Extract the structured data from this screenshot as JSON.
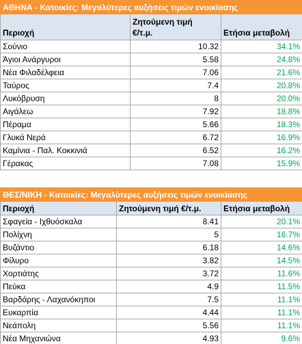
{
  "athens": {
    "title": "ΑΘΗΝΑ - Κατοικίες: Μεγαλύτερες αυξήσεις τιμών ενοικίασης",
    "col_area": "Περιοχή",
    "col_price_line1": "Ζητούμενη τιμή",
    "col_price_line2": "€/τ.μ.",
    "col_change": "Ετήσια μεταβολή",
    "rows": [
      {
        "area": "Σούνιο",
        "price": "10.32",
        "change": "34.1%"
      },
      {
        "area": "Άγιοι Ανάργυροι",
        "price": "5.58",
        "change": "24.8%"
      },
      {
        "area": "Νέα Φιλαδέλφεια",
        "price": "7.06",
        "change": "21.6%"
      },
      {
        "area": "Ταύρος",
        "price": "7.4",
        "change": "20.8%"
      },
      {
        "area": "Λυκόβρυση",
        "price": "8",
        "change": "20.0%"
      },
      {
        "area": "Αιγάλεω",
        "price": "7.92",
        "change": "18.8%"
      },
      {
        "area": "Πέραμα",
        "price": "5.66",
        "change": "18.3%"
      },
      {
        "area": "Γλυκά Νερά",
        "price": "6.72",
        "change": "16.9%"
      },
      {
        "area": "Καμίνια - Παλ. Κοκκινιά",
        "price": "6.52",
        "change": "16.2%"
      },
      {
        "area": "Γέρακας",
        "price": "7.08",
        "change": "15.9%"
      }
    ]
  },
  "thessaloniki": {
    "title": "ΘΕΣ/ΝΙΚΗ - Κατοικίες: Μεγαλύτερες αυξήσεις τιμών ενοικίασης",
    "col_area": "Περιοχή",
    "col_price": "Ζητούμενη τιμή €/τ.μ.",
    "col_change": "Ετήσια μεταβολή",
    "rows": [
      {
        "area": "Σφαγεία - Ιχθυόσκαλα",
        "price": "8.41",
        "change": "20.1%"
      },
      {
        "area": "Πολίχνη",
        "price": "5",
        "change": "16.7%"
      },
      {
        "area": "Βυζάντιο",
        "price": "6.18",
        "change": "14.6%"
      },
      {
        "area": "Φίλυρο",
        "price": "3.82",
        "change": "14.5%"
      },
      {
        "area": "Χορτιάτης",
        "price": "3.72",
        "change": "11.6%"
      },
      {
        "area": "Πεύκα",
        "price": "4.9",
        "change": "11.5%"
      },
      {
        "area": "Βαρδάρης - Λαχανόκηποι",
        "price": "7.5",
        "change": "11.1%"
      },
      {
        "area": "Ευκαρπία",
        "price": "4.44",
        "change": "11.1%"
      },
      {
        "area": "Νεάπολη",
        "price": "5.56",
        "change": "11.1%"
      },
      {
        "area": "Νέα Μηχανιώνα",
        "price": "4.93",
        "change": "9.6%"
      }
    ]
  }
}
